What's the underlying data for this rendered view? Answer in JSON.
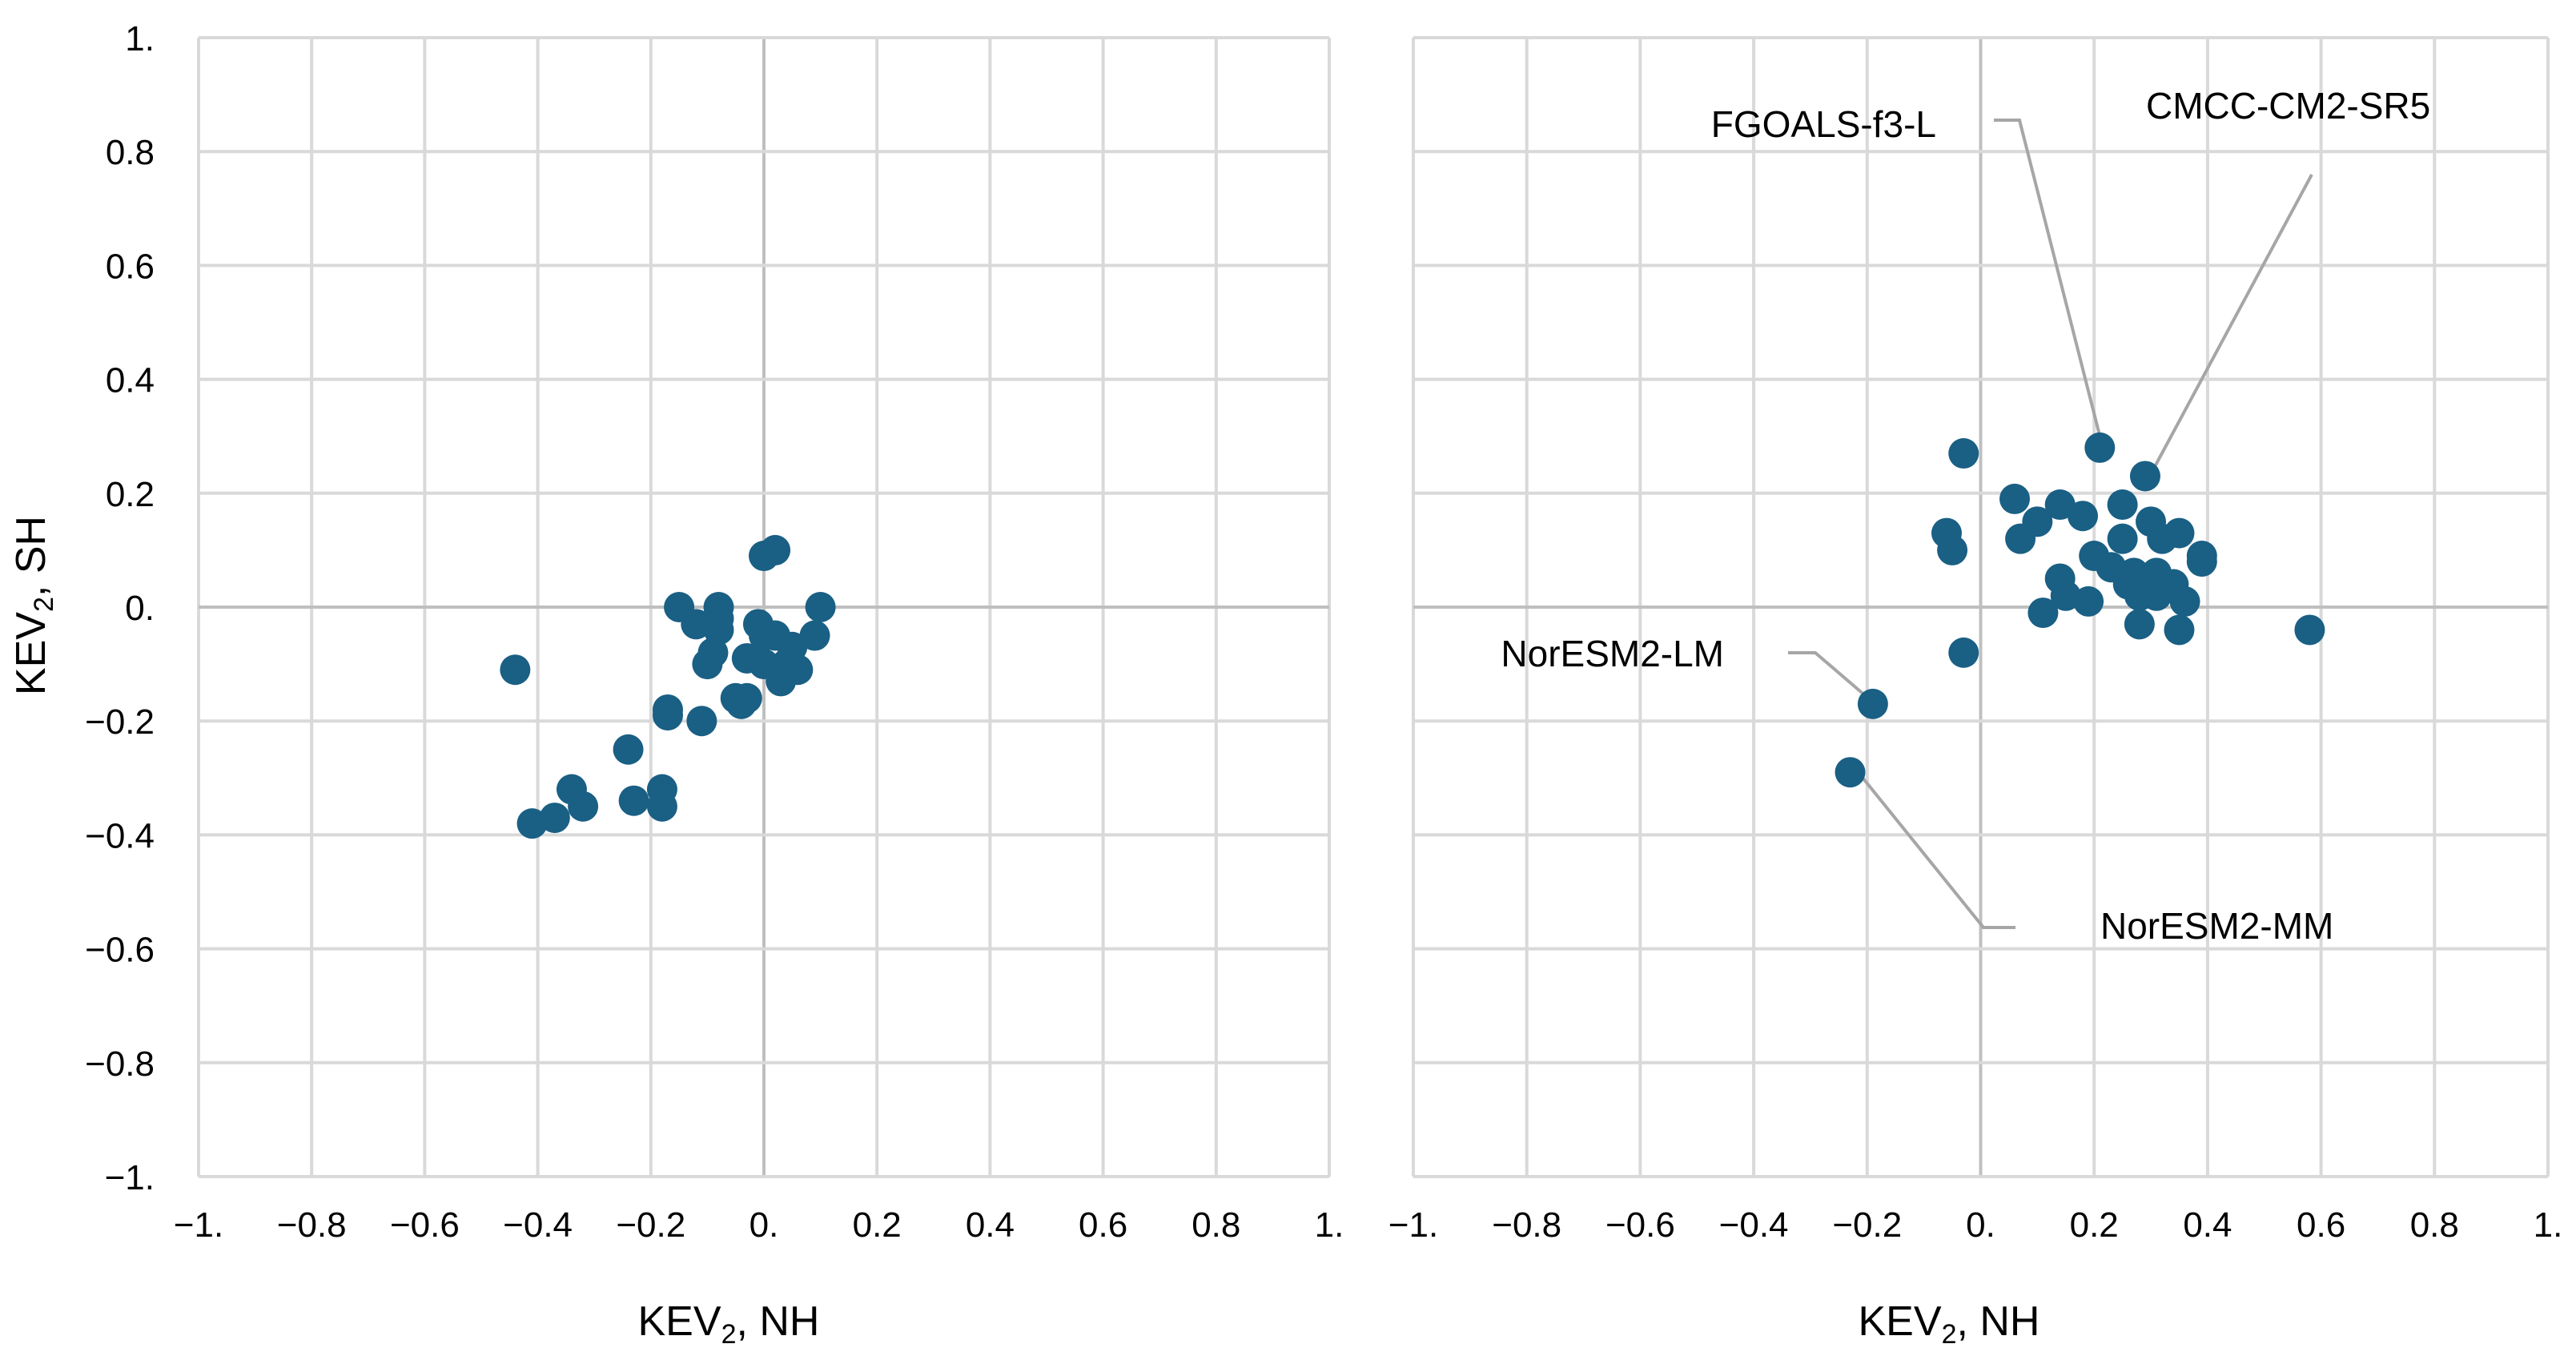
{
  "chart_data": [
    {
      "type": "scatter",
      "xlabel": "KEV",
      "xlabel_sub": "2",
      "xlabel_suffix": ", NH",
      "ylabel": "KEV",
      "ylabel_sub": "2",
      "ylabel_suffix": ", SH",
      "xlim": [
        -1,
        1
      ],
      "ylim": [
        -1,
        1
      ],
      "grid": true,
      "marker_color": "#1a5f84",
      "x_tick_labels": [
        "−1.",
        "−0.8",
        "−0.6",
        "−0.4",
        "−0.2",
        "0.",
        "0.2",
        "0.4",
        "0.6",
        "0.8",
        "1."
      ],
      "y_tick_labels": [
        "−1.",
        "−0.8",
        "−0.6",
        "−0.4",
        "−0.2",
        "0.",
        "0.2",
        "0.4",
        "0.6",
        "0.8",
        "1."
      ],
      "points": [
        [
          -0.44,
          -0.11
        ],
        [
          -0.41,
          -0.38
        ],
        [
          -0.37,
          -0.37
        ],
        [
          -0.34,
          -0.32
        ],
        [
          -0.32,
          -0.35
        ],
        [
          -0.24,
          -0.25
        ],
        [
          -0.23,
          -0.34
        ],
        [
          -0.18,
          -0.32
        ],
        [
          -0.18,
          -0.35
        ],
        [
          -0.17,
          -0.18
        ],
        [
          -0.17,
          -0.19
        ],
        [
          -0.15,
          0.0
        ],
        [
          -0.12,
          -0.03
        ],
        [
          -0.11,
          -0.2
        ],
        [
          -0.1,
          -0.1
        ],
        [
          -0.09,
          -0.08
        ],
        [
          -0.08,
          -0.04
        ],
        [
          -0.08,
          -0.02
        ],
        [
          -0.08,
          0.0
        ],
        [
          -0.05,
          -0.16
        ],
        [
          -0.04,
          -0.17
        ],
        [
          -0.03,
          -0.09
        ],
        [
          -0.03,
          -0.16
        ],
        [
          -0.01,
          -0.03
        ],
        [
          0.0,
          -0.05
        ],
        [
          0.0,
          0.09
        ],
        [
          0.02,
          0.1
        ],
        [
          0.0,
          -0.1
        ],
        [
          0.02,
          -0.05
        ],
        [
          0.03,
          -0.13
        ],
        [
          0.05,
          -0.07
        ],
        [
          0.06,
          -0.11
        ],
        [
          0.09,
          -0.05
        ],
        [
          0.1,
          0.0
        ],
        [
          0.04,
          -0.1
        ]
      ]
    },
    {
      "type": "scatter",
      "xlabel": "KEV",
      "xlabel_sub": "2",
      "xlabel_suffix": ", NH",
      "xlim": [
        -1,
        1
      ],
      "ylim": [
        -1,
        1
      ],
      "grid": true,
      "marker_color": "#1a5f84",
      "x_tick_labels": [
        "−1.",
        "−0.8",
        "−0.6",
        "−0.4",
        "−0.2",
        "0.",
        "0.2",
        "0.4",
        "0.6",
        "0.8",
        "1."
      ],
      "points": [
        [
          -0.23,
          -0.29
        ],
        [
          -0.19,
          -0.17
        ],
        [
          -0.06,
          0.13
        ],
        [
          -0.05,
          0.1
        ],
        [
          -0.03,
          0.27
        ],
        [
          -0.03,
          -0.08
        ],
        [
          0.06,
          0.19
        ],
        [
          0.07,
          0.12
        ],
        [
          0.1,
          0.15
        ],
        [
          0.11,
          -0.01
        ],
        [
          0.14,
          0.18
        ],
        [
          0.14,
          0.05
        ],
        [
          0.15,
          0.02
        ],
        [
          0.18,
          0.16
        ],
        [
          0.19,
          0.01
        ],
        [
          0.2,
          0.09
        ],
        [
          0.21,
          0.28
        ],
        [
          0.23,
          0.07
        ],
        [
          0.25,
          0.18
        ],
        [
          0.25,
          0.12
        ],
        [
          0.26,
          0.04
        ],
        [
          0.27,
          0.06
        ],
        [
          0.28,
          -0.03
        ],
        [
          0.28,
          0.02
        ],
        [
          0.29,
          0.23
        ],
        [
          0.3,
          0.15
        ],
        [
          0.31,
          0.06
        ],
        [
          0.31,
          0.02
        ],
        [
          0.32,
          0.12
        ],
        [
          0.34,
          0.04
        ],
        [
          0.35,
          0.13
        ],
        [
          0.36,
          0.01
        ],
        [
          0.35,
          -0.04
        ],
        [
          0.39,
          0.09
        ],
        [
          0.39,
          0.08
        ],
        [
          0.58,
          -0.04
        ]
      ],
      "annotations": [
        {
          "label": "FGOALS-f3-L",
          "point": [
            0.21,
            0.28
          ]
        },
        {
          "label": "CMCC-CM2-SR5",
          "point": [
            0.29,
            0.23
          ]
        },
        {
          "label": "NorESM2-LM",
          "point": [
            -0.19,
            -0.17
          ]
        },
        {
          "label": "NorESM2-MM",
          "point": [
            -0.23,
            -0.29
          ]
        }
      ]
    }
  ]
}
